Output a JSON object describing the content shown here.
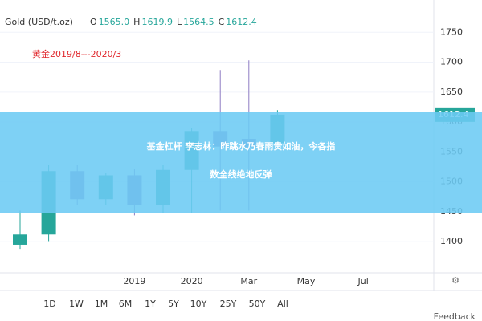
{
  "chart_data": {
    "type": "candlestick",
    "symbol": "Gold (USD/t.oz)",
    "ohlc_header": [
      {
        "key": "O",
        "value": "1565.0"
      },
      {
        "key": "H",
        "value": "1619.9"
      },
      {
        "key": "L",
        "value": "1564.5"
      },
      {
        "key": "C",
        "value": "1612.4"
      }
    ],
    "annotation": "黄金2019/8---2020/3",
    "categories": [
      null,
      null,
      null,
      null,
      "2019",
      null,
      "2020",
      null,
      "Mar",
      null,
      "May",
      null,
      "Jul"
    ],
    "open": [
      1395,
      1412,
      1518,
      1471,
      1511,
      1462,
      1520,
      1585,
      1572,
      1565,
      null,
      null,
      null
    ],
    "high": [
      1452,
      1529,
      1529,
      1515,
      1521,
      1528,
      1590,
      1687,
      1703,
      1619.9,
      null,
      null,
      null
    ],
    "low": [
      1388,
      1401,
      1462,
      1462,
      1444,
      1448,
      1448,
      1452,
      1452,
      1564.5,
      null,
      null,
      null
    ],
    "close": [
      1412,
      1518,
      1471,
      1511,
      1462,
      1520,
      1585,
      1559,
      1558,
      1612.4,
      null,
      null,
      null
    ],
    "up_color": "#26a69a",
    "down_color": "#8e7cc3",
    "ylim": [
      1348,
      1804
    ],
    "yticks": [
      1400,
      1450,
      1500,
      1550,
      1600,
      1650,
      1700,
      1750
    ],
    "grid": true,
    "banner": [
      "基金杠杆 李志林：昨跳水乃春雨贵如油，今各指",
      "数全线绝地反弹"
    ],
    "ranges": [
      "1D",
      "1W",
      "1M",
      "6M",
      "1Y",
      "5Y",
      "10Y",
      "25Y",
      "50Y",
      "All"
    ],
    "footer": "Feedback"
  }
}
